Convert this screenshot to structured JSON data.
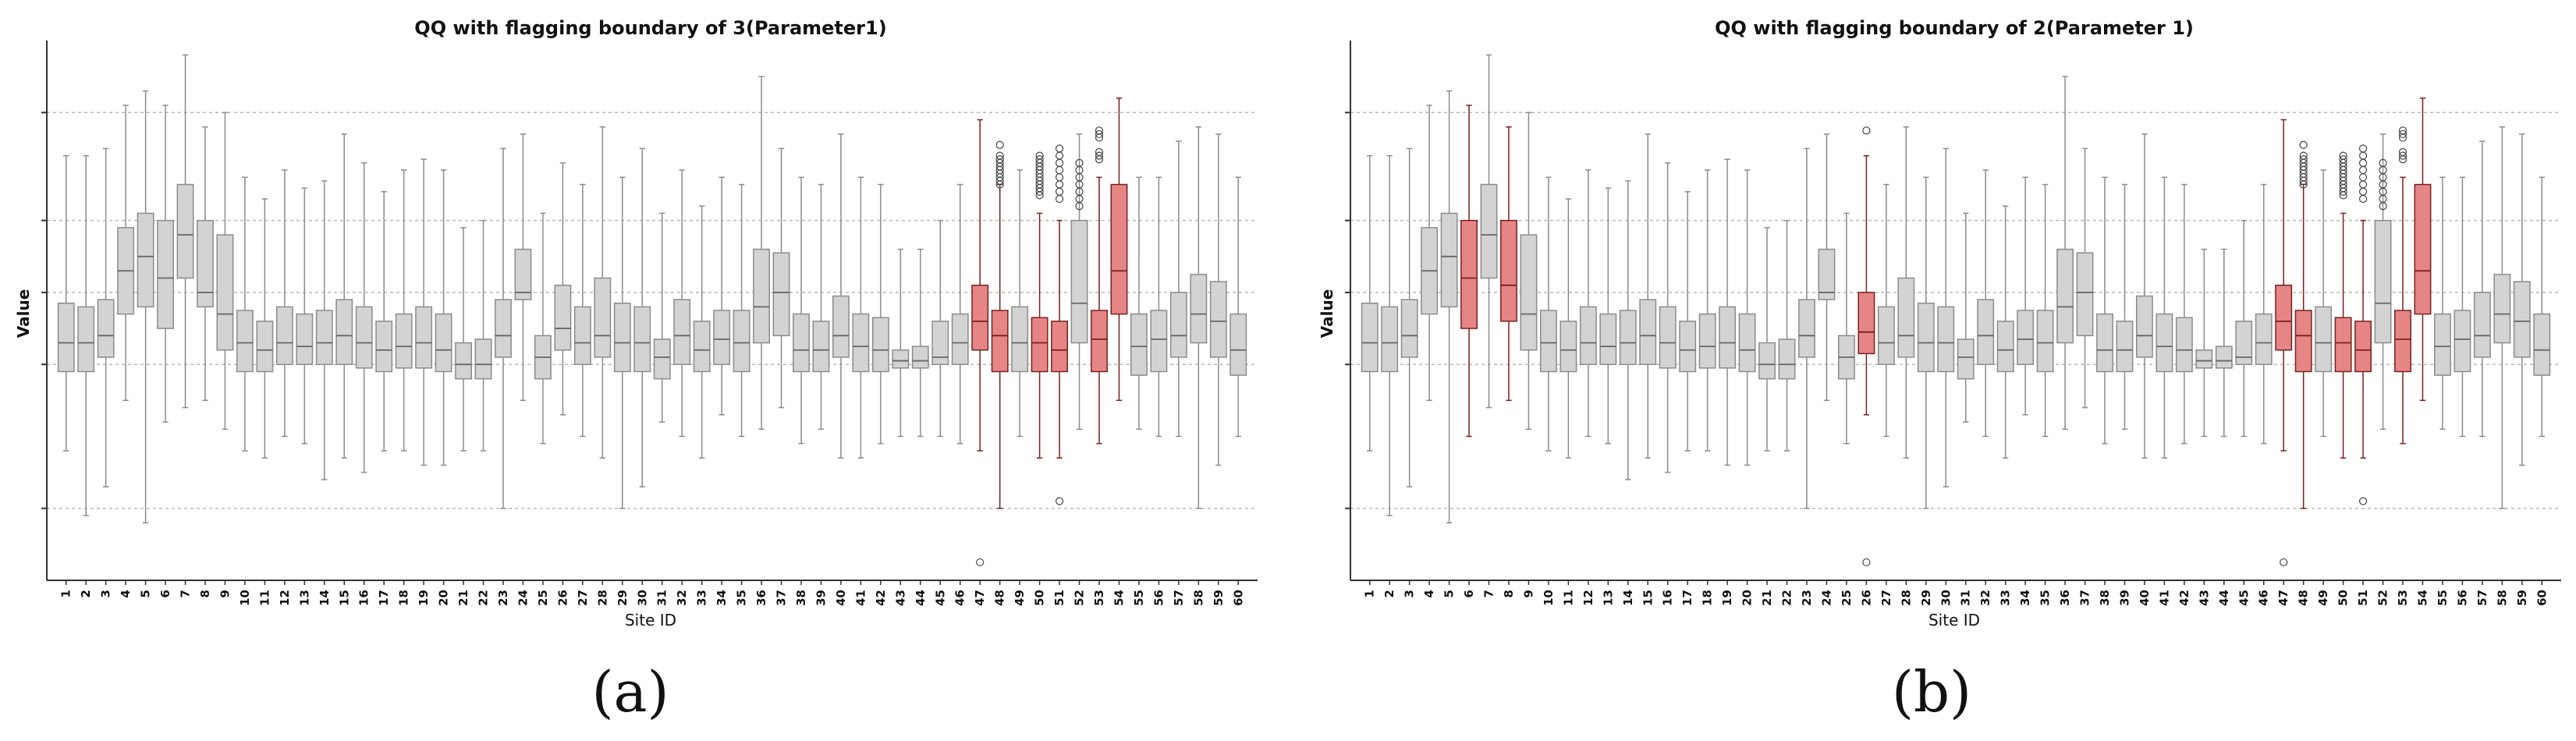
{
  "colors": {
    "normal_fill": "#d3d3d3",
    "normal_stroke": "#8c8c8c",
    "flag_fill": "#e68585",
    "flag_stroke": "#7a2020",
    "grid": "#b8b8b8"
  },
  "panels": [
    {
      "label": "(a)"
    },
    {
      "label": "(b)"
    }
  ],
  "chart_data": [
    {
      "type": "box",
      "title": "QQ with flagging boundary of 3(Parameter1)",
      "xlabel": "Site ID",
      "ylabel": "Value",
      "grid": true,
      "categories": [
        "1",
        "2",
        "3",
        "4",
        "5",
        "6",
        "7",
        "8",
        "9",
        "10",
        "11",
        "12",
        "13",
        "14",
        "15",
        "16",
        "17",
        "18",
        "19",
        "20",
        "21",
        "22",
        "23",
        "24",
        "25",
        "26",
        "27",
        "28",
        "29",
        "30",
        "31",
        "32",
        "33",
        "34",
        "35",
        "36",
        "37",
        "38",
        "39",
        "40",
        "41",
        "42",
        "43",
        "44",
        "45",
        "46",
        "47",
        "48",
        "49",
        "50",
        "51",
        "52",
        "53",
        "54",
        "55",
        "56",
        "57",
        "58",
        "59",
        "60"
      ],
      "flagged": [
        "47",
        "48",
        "50",
        "51",
        "53",
        "54"
      ],
      "boxes": [
        {
          "wl": 1.8,
          "q1": 2.9,
          "med": 3.3,
          "q3": 3.85,
          "wh": 5.9
        },
        {
          "wl": 0.9,
          "q1": 2.9,
          "med": 3.3,
          "q3": 3.8,
          "wh": 5.9
        },
        {
          "wl": 1.3,
          "q1": 3.1,
          "med": 3.4,
          "q3": 3.9,
          "wh": 6.0
        },
        {
          "wl": 2.5,
          "q1": 3.7,
          "med": 4.3,
          "q3": 4.9,
          "wh": 6.6
        },
        {
          "wl": 0.8,
          "q1": 3.8,
          "med": 4.5,
          "q3": 5.1,
          "wh": 6.8
        },
        {
          "wl": 2.2,
          "q1": 3.5,
          "med": 4.2,
          "q3": 5.0,
          "wh": 6.6
        },
        {
          "wl": 2.4,
          "q1": 4.2,
          "med": 4.8,
          "q3": 5.5,
          "wh": 7.3
        },
        {
          "wl": 2.5,
          "q1": 3.8,
          "med": 4.0,
          "q3": 5.0,
          "wh": 6.3
        },
        {
          "wl": 2.1,
          "q1": 3.2,
          "med": 3.7,
          "q3": 4.8,
          "wh": 6.5
        },
        {
          "wl": 1.8,
          "q1": 2.9,
          "med": 3.3,
          "q3": 3.75,
          "wh": 5.6
        },
        {
          "wl": 1.7,
          "q1": 2.9,
          "med": 3.2,
          "q3": 3.6,
          "wh": 5.3
        },
        {
          "wl": 2.0,
          "q1": 3.0,
          "med": 3.3,
          "q3": 3.8,
          "wh": 5.7
        },
        {
          "wl": 1.9,
          "q1": 3.0,
          "med": 3.25,
          "q3": 3.7,
          "wh": 5.45
        },
        {
          "wl": 1.4,
          "q1": 3.0,
          "med": 3.3,
          "q3": 3.75,
          "wh": 5.55
        },
        {
          "wl": 1.7,
          "q1": 3.0,
          "med": 3.4,
          "q3": 3.9,
          "wh": 6.2
        },
        {
          "wl": 1.5,
          "q1": 2.95,
          "med": 3.3,
          "q3": 3.8,
          "wh": 5.8
        },
        {
          "wl": 1.8,
          "q1": 2.9,
          "med": 3.2,
          "q3": 3.6,
          "wh": 5.4
        },
        {
          "wl": 1.8,
          "q1": 2.95,
          "med": 3.25,
          "q3": 3.7,
          "wh": 5.7
        },
        {
          "wl": 1.6,
          "q1": 2.95,
          "med": 3.3,
          "q3": 3.8,
          "wh": 5.85
        },
        {
          "wl": 1.6,
          "q1": 2.9,
          "med": 3.2,
          "q3": 3.7,
          "wh": 5.7
        },
        {
          "wl": 1.8,
          "q1": 2.8,
          "med": 3.0,
          "q3": 3.3,
          "wh": 4.9
        },
        {
          "wl": 1.8,
          "q1": 2.8,
          "med": 3.0,
          "q3": 3.35,
          "wh": 5.0
        },
        {
          "wl": 1.0,
          "q1": 3.1,
          "med": 3.4,
          "q3": 3.9,
          "wh": 6.0
        },
        {
          "wl": 2.5,
          "q1": 3.9,
          "med": 4.0,
          "q3": 4.6,
          "wh": 6.2
        },
        {
          "wl": 1.9,
          "q1": 2.8,
          "med": 3.1,
          "q3": 3.4,
          "wh": 5.1
        },
        {
          "wl": 2.3,
          "q1": 3.2,
          "med": 3.5,
          "q3": 4.1,
          "wh": 5.8
        },
        {
          "wl": 2.0,
          "q1": 3.0,
          "med": 3.3,
          "q3": 3.8,
          "wh": 5.5
        },
        {
          "wl": 1.7,
          "q1": 3.1,
          "med": 3.4,
          "q3": 4.2,
          "wh": 6.3
        },
        {
          "wl": 1.0,
          "q1": 2.9,
          "med": 3.3,
          "q3": 3.85,
          "wh": 5.6
        },
        {
          "wl": 1.3,
          "q1": 2.9,
          "med": 3.3,
          "q3": 3.8,
          "wh": 6.0
        },
        {
          "wl": 2.2,
          "q1": 2.8,
          "med": 3.1,
          "q3": 3.35,
          "wh": 5.1
        },
        {
          "wl": 2.0,
          "q1": 3.0,
          "med": 3.4,
          "q3": 3.9,
          "wh": 5.7
        },
        {
          "wl": 1.7,
          "q1": 2.9,
          "med": 3.2,
          "q3": 3.6,
          "wh": 5.2
        },
        {
          "wl": 2.3,
          "q1": 3.0,
          "med": 3.35,
          "q3": 3.75,
          "wh": 5.6
        },
        {
          "wl": 2.0,
          "q1": 2.9,
          "med": 3.3,
          "q3": 3.75,
          "wh": 5.5
        },
        {
          "wl": 2.1,
          "q1": 3.3,
          "med": 3.8,
          "q3": 4.6,
          "wh": 7.0
        },
        {
          "wl": 2.4,
          "q1": 3.4,
          "med": 4.0,
          "q3": 4.55,
          "wh": 6.0
        },
        {
          "wl": 1.9,
          "q1": 2.9,
          "med": 3.2,
          "q3": 3.7,
          "wh": 5.6
        },
        {
          "wl": 2.1,
          "q1": 2.9,
          "med": 3.2,
          "q3": 3.6,
          "wh": 5.5
        },
        {
          "wl": 1.7,
          "q1": 3.1,
          "med": 3.4,
          "q3": 3.95,
          "wh": 6.2
        },
        {
          "wl": 1.7,
          "q1": 2.9,
          "med": 3.25,
          "q3": 3.7,
          "wh": 5.6
        },
        {
          "wl": 1.9,
          "q1": 2.9,
          "med": 3.2,
          "q3": 3.65,
          "wh": 5.5
        },
        {
          "wl": 2.0,
          "q1": 2.95,
          "med": 3.05,
          "q3": 3.2,
          "wh": 4.6
        },
        {
          "wl": 2.0,
          "q1": 2.95,
          "med": 3.05,
          "q3": 3.25,
          "wh": 4.6
        },
        {
          "wl": 2.0,
          "q1": 3.0,
          "med": 3.1,
          "q3": 3.6,
          "wh": 5.0
        },
        {
          "wl": 1.9,
          "q1": 3.0,
          "med": 3.3,
          "q3": 3.7,
          "wh": 5.5
        },
        {
          "wl": 1.8,
          "q1": 3.2,
          "med": 3.6,
          "q3": 4.1,
          "wh": 6.4,
          "out": [
            0.25
          ]
        },
        {
          "wl": 1.0,
          "q1": 2.9,
          "med": 3.4,
          "q3": 3.75,
          "wh": 5.5,
          "out": [
            5.9,
            5.85,
            5.8,
            5.75,
            5.7,
            5.65,
            5.6,
            5.55,
            5.5,
            6.05
          ]
        },
        {
          "wl": 2.0,
          "q1": 2.9,
          "med": 3.3,
          "q3": 3.8,
          "wh": 5.7
        },
        {
          "wl": 1.7,
          "q1": 2.9,
          "med": 3.3,
          "q3": 3.65,
          "wh": 5.1,
          "out": [
            5.9,
            5.85,
            5.8,
            5.75,
            5.7,
            5.65,
            5.6,
            5.55,
            5.5,
            5.45,
            5.4,
            5.35
          ]
        },
        {
          "wl": 1.7,
          "q1": 2.9,
          "med": 3.2,
          "q3": 3.6,
          "wh": 5.0,
          "out": [
            6.0,
            5.9,
            5.8,
            5.7,
            5.6,
            5.5,
            5.4,
            5.3,
            1.1
          ]
        },
        {
          "wl": 2.1,
          "q1": 3.3,
          "med": 3.85,
          "q3": 5.0,
          "wh": 6.2,
          "out": [
            5.8,
            5.7,
            5.6,
            5.5,
            5.4,
            5.3,
            5.2
          ]
        },
        {
          "wl": 1.9,
          "q1": 2.9,
          "med": 3.35,
          "q3": 3.75,
          "wh": 5.6,
          "out": [
            6.25,
            6.2,
            6.15,
            5.95,
            5.9,
            5.85
          ]
        },
        {
          "wl": 2.5,
          "q1": 3.7,
          "med": 4.3,
          "q3": 5.5,
          "wh": 6.7
        },
        {
          "wl": 2.1,
          "q1": 2.85,
          "med": 3.25,
          "q3": 3.7,
          "wh": 5.6
        },
        {
          "wl": 2.0,
          "q1": 2.9,
          "med": 3.35,
          "q3": 3.75,
          "wh": 5.6
        },
        {
          "wl": 2.0,
          "q1": 3.1,
          "med": 3.4,
          "q3": 4.0,
          "wh": 6.1
        },
        {
          "wl": 1.0,
          "q1": 3.3,
          "med": 3.7,
          "q3": 4.25,
          "wh": 6.3
        },
        {
          "wl": 1.6,
          "q1": 3.1,
          "med": 3.6,
          "q3": 4.15,
          "wh": 6.2
        },
        {
          "wl": 2.0,
          "q1": 2.85,
          "med": 3.2,
          "q3": 3.7,
          "wh": 5.6
        }
      ]
    },
    {
      "type": "box",
      "title": "QQ with flagging boundary of 2(Parameter 1)",
      "xlabel": "Site ID",
      "ylabel": "Value",
      "grid": true,
      "categories": [
        "1",
        "2",
        "3",
        "4",
        "5",
        "6",
        "7",
        "8",
        "9",
        "10",
        "11",
        "12",
        "13",
        "14",
        "15",
        "16",
        "17",
        "18",
        "19",
        "20",
        "21",
        "22",
        "23",
        "24",
        "25",
        "26",
        "27",
        "28",
        "29",
        "30",
        "31",
        "32",
        "33",
        "34",
        "35",
        "36",
        "37",
        "38",
        "39",
        "40",
        "41",
        "42",
        "43",
        "44",
        "45",
        "46",
        "47",
        "48",
        "49",
        "50",
        "51",
        "52",
        "53",
        "54",
        "55",
        "56",
        "57",
        "58",
        "59",
        "60"
      ],
      "flagged": [
        "6",
        "8",
        "26",
        "47",
        "48",
        "50",
        "51",
        "53",
        "54"
      ],
      "boxes": [
        {
          "wl": 1.8,
          "q1": 2.9,
          "med": 3.3,
          "q3": 3.85,
          "wh": 5.9
        },
        {
          "wl": 0.9,
          "q1": 2.9,
          "med": 3.3,
          "q3": 3.8,
          "wh": 5.9
        },
        {
          "wl": 1.3,
          "q1": 3.1,
          "med": 3.4,
          "q3": 3.9,
          "wh": 6.0
        },
        {
          "wl": 2.5,
          "q1": 3.7,
          "med": 4.3,
          "q3": 4.9,
          "wh": 6.6
        },
        {
          "wl": 0.8,
          "q1": 3.8,
          "med": 4.5,
          "q3": 5.1,
          "wh": 6.8
        },
        {
          "wl": 2.0,
          "q1": 3.5,
          "med": 4.2,
          "q3": 5.0,
          "wh": 6.6
        },
        {
          "wl": 2.4,
          "q1": 4.2,
          "med": 4.8,
          "q3": 5.5,
          "wh": 7.3
        },
        {
          "wl": 2.5,
          "q1": 3.6,
          "med": 4.1,
          "q3": 5.0,
          "wh": 6.3
        },
        {
          "wl": 2.1,
          "q1": 3.2,
          "med": 3.7,
          "q3": 4.8,
          "wh": 6.5
        },
        {
          "wl": 1.8,
          "q1": 2.9,
          "med": 3.3,
          "q3": 3.75,
          "wh": 5.6
        },
        {
          "wl": 1.7,
          "q1": 2.9,
          "med": 3.2,
          "q3": 3.6,
          "wh": 5.3
        },
        {
          "wl": 2.0,
          "q1": 3.0,
          "med": 3.3,
          "q3": 3.8,
          "wh": 5.7
        },
        {
          "wl": 1.9,
          "q1": 3.0,
          "med": 3.25,
          "q3": 3.7,
          "wh": 5.45
        },
        {
          "wl": 1.4,
          "q1": 3.0,
          "med": 3.3,
          "q3": 3.75,
          "wh": 5.55
        },
        {
          "wl": 1.7,
          "q1": 3.0,
          "med": 3.4,
          "q3": 3.9,
          "wh": 6.2
        },
        {
          "wl": 1.5,
          "q1": 2.95,
          "med": 3.3,
          "q3": 3.8,
          "wh": 5.8
        },
        {
          "wl": 1.8,
          "q1": 2.9,
          "med": 3.2,
          "q3": 3.6,
          "wh": 5.4
        },
        {
          "wl": 1.8,
          "q1": 2.95,
          "med": 3.25,
          "q3": 3.7,
          "wh": 5.7
        },
        {
          "wl": 1.6,
          "q1": 2.95,
          "med": 3.3,
          "q3": 3.8,
          "wh": 5.85
        },
        {
          "wl": 1.6,
          "q1": 2.9,
          "med": 3.2,
          "q3": 3.7,
          "wh": 5.7
        },
        {
          "wl": 1.8,
          "q1": 2.8,
          "med": 3.0,
          "q3": 3.3,
          "wh": 4.9
        },
        {
          "wl": 1.8,
          "q1": 2.8,
          "med": 3.0,
          "q3": 3.35,
          "wh": 5.0
        },
        {
          "wl": 1.0,
          "q1": 3.1,
          "med": 3.4,
          "q3": 3.9,
          "wh": 6.0
        },
        {
          "wl": 2.5,
          "q1": 3.9,
          "med": 4.0,
          "q3": 4.6,
          "wh": 6.2
        },
        {
          "wl": 1.9,
          "q1": 2.8,
          "med": 3.1,
          "q3": 3.4,
          "wh": 5.1
        },
        {
          "wl": 2.3,
          "q1": 3.15,
          "med": 3.45,
          "q3": 4.0,
          "wh": 5.9,
          "out": [
            0.25,
            6.25
          ]
        },
        {
          "wl": 2.0,
          "q1": 3.0,
          "med": 3.3,
          "q3": 3.8,
          "wh": 5.5
        },
        {
          "wl": 1.7,
          "q1": 3.1,
          "med": 3.4,
          "q3": 4.2,
          "wh": 6.3
        },
        {
          "wl": 1.0,
          "q1": 2.9,
          "med": 3.3,
          "q3": 3.85,
          "wh": 5.6
        },
        {
          "wl": 1.3,
          "q1": 2.9,
          "med": 3.3,
          "q3": 3.8,
          "wh": 6.0
        },
        {
          "wl": 2.2,
          "q1": 2.8,
          "med": 3.1,
          "q3": 3.35,
          "wh": 5.1
        },
        {
          "wl": 2.0,
          "q1": 3.0,
          "med": 3.4,
          "q3": 3.9,
          "wh": 5.7
        },
        {
          "wl": 1.7,
          "q1": 2.9,
          "med": 3.2,
          "q3": 3.6,
          "wh": 5.2
        },
        {
          "wl": 2.3,
          "q1": 3.0,
          "med": 3.35,
          "q3": 3.75,
          "wh": 5.6
        },
        {
          "wl": 2.0,
          "q1": 2.9,
          "med": 3.3,
          "q3": 3.75,
          "wh": 5.5
        },
        {
          "wl": 2.1,
          "q1": 3.3,
          "med": 3.8,
          "q3": 4.6,
          "wh": 7.0
        },
        {
          "wl": 2.4,
          "q1": 3.4,
          "med": 4.0,
          "q3": 4.55,
          "wh": 6.0
        },
        {
          "wl": 1.9,
          "q1": 2.9,
          "med": 3.2,
          "q3": 3.7,
          "wh": 5.6
        },
        {
          "wl": 2.1,
          "q1": 2.9,
          "med": 3.2,
          "q3": 3.6,
          "wh": 5.5
        },
        {
          "wl": 1.7,
          "q1": 3.1,
          "med": 3.4,
          "q3": 3.95,
          "wh": 6.2
        },
        {
          "wl": 1.7,
          "q1": 2.9,
          "med": 3.25,
          "q3": 3.7,
          "wh": 5.6
        },
        {
          "wl": 1.9,
          "q1": 2.9,
          "med": 3.2,
          "q3": 3.65,
          "wh": 5.5
        },
        {
          "wl": 2.0,
          "q1": 2.95,
          "med": 3.05,
          "q3": 3.2,
          "wh": 4.6
        },
        {
          "wl": 2.0,
          "q1": 2.95,
          "med": 3.05,
          "q3": 3.25,
          "wh": 4.6
        },
        {
          "wl": 2.0,
          "q1": 3.0,
          "med": 3.1,
          "q3": 3.6,
          "wh": 5.0
        },
        {
          "wl": 1.9,
          "q1": 3.0,
          "med": 3.3,
          "q3": 3.7,
          "wh": 5.5
        },
        {
          "wl": 1.8,
          "q1": 3.2,
          "med": 3.6,
          "q3": 4.1,
          "wh": 6.4,
          "out": [
            0.25
          ]
        },
        {
          "wl": 1.0,
          "q1": 2.9,
          "med": 3.4,
          "q3": 3.75,
          "wh": 5.5,
          "out": [
            5.9,
            5.85,
            5.8,
            5.75,
            5.7,
            5.65,
            5.6,
            5.55,
            5.5,
            6.05
          ]
        },
        {
          "wl": 2.0,
          "q1": 2.9,
          "med": 3.3,
          "q3": 3.8,
          "wh": 5.7
        },
        {
          "wl": 1.7,
          "q1": 2.9,
          "med": 3.3,
          "q3": 3.65,
          "wh": 5.1,
          "out": [
            5.9,
            5.85,
            5.8,
            5.75,
            5.7,
            5.65,
            5.6,
            5.55,
            5.5,
            5.45,
            5.4,
            5.35
          ]
        },
        {
          "wl": 1.7,
          "q1": 2.9,
          "med": 3.2,
          "q3": 3.6,
          "wh": 5.0,
          "out": [
            6.0,
            5.9,
            5.8,
            5.7,
            5.6,
            5.5,
            5.4,
            5.3,
            1.1
          ]
        },
        {
          "wl": 2.1,
          "q1": 3.3,
          "med": 3.85,
          "q3": 5.0,
          "wh": 6.2,
          "out": [
            5.8,
            5.7,
            5.6,
            5.5,
            5.4,
            5.3,
            5.2
          ]
        },
        {
          "wl": 1.9,
          "q1": 2.9,
          "med": 3.35,
          "q3": 3.75,
          "wh": 5.6,
          "out": [
            6.25,
            6.2,
            6.15,
            5.95,
            5.9,
            5.85
          ]
        },
        {
          "wl": 2.5,
          "q1": 3.7,
          "med": 4.3,
          "q3": 5.5,
          "wh": 6.7
        },
        {
          "wl": 2.1,
          "q1": 2.85,
          "med": 3.25,
          "q3": 3.7,
          "wh": 5.6
        },
        {
          "wl": 2.0,
          "q1": 2.9,
          "med": 3.35,
          "q3": 3.75,
          "wh": 5.6
        },
        {
          "wl": 2.0,
          "q1": 3.1,
          "med": 3.4,
          "q3": 4.0,
          "wh": 6.1
        },
        {
          "wl": 1.0,
          "q1": 3.3,
          "med": 3.7,
          "q3": 4.25,
          "wh": 6.3
        },
        {
          "wl": 1.6,
          "q1": 3.1,
          "med": 3.6,
          "q3": 4.15,
          "wh": 6.2
        },
        {
          "wl": 2.0,
          "q1": 2.85,
          "med": 3.2,
          "q3": 3.7,
          "wh": 5.6
        }
      ]
    }
  ]
}
